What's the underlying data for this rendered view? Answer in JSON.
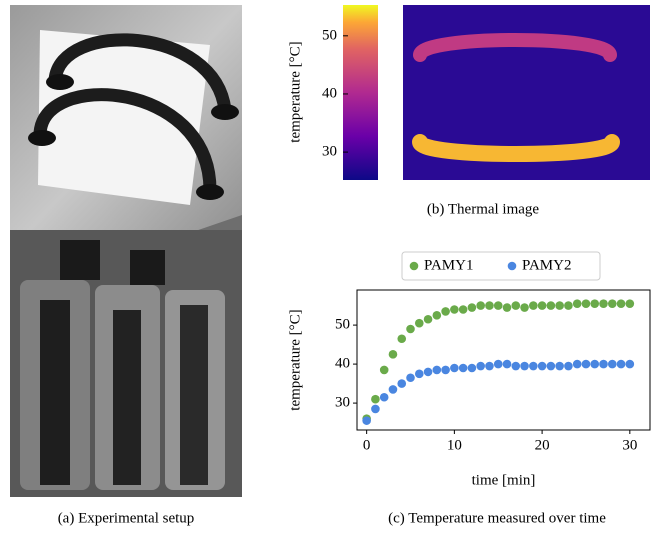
{
  "photo": {
    "caption": "(a) Experimental setup"
  },
  "chart_data": [
    {
      "type": "colorbar",
      "caption": "(b) Thermal image",
      "ylabel": "temperature [°C]",
      "ylim": [
        25.2,
        55.3
      ],
      "yticks": [
        30,
        40,
        50
      ]
    },
    {
      "type": "scatter",
      "caption": "(c) Temperature measured over time",
      "xlabel": "time [min]",
      "ylabel": "temperature [°C]",
      "xlim": [
        -1.1,
        32.3
      ],
      "xticks": [
        0,
        10,
        20,
        30
      ],
      "ylim": [
        23.1,
        59.0
      ],
      "yticks": [
        30,
        40,
        50
      ],
      "x": [
        0,
        1,
        2,
        3,
        4,
        5,
        6,
        7,
        8,
        9,
        10,
        11,
        12,
        13,
        14,
        15,
        16,
        17,
        18,
        19,
        20,
        21,
        22,
        23,
        24,
        25,
        26,
        27,
        28,
        29,
        30
      ],
      "series": [
        {
          "name": "PAMY1",
          "color": "#6aaa4a",
          "values": [
            26,
            31,
            38.5,
            42.5,
            46.5,
            49,
            50.5,
            51.5,
            52.5,
            53.5,
            54,
            54,
            54.5,
            55,
            55,
            55,
            54.5,
            55,
            54.5,
            55,
            55,
            55,
            55,
            55,
            55.5,
            55.5,
            55.5,
            55.5,
            55.5,
            55.5,
            55.5
          ]
        },
        {
          "name": "PAMY2",
          "color": "#4a86e0",
          "values": [
            25.5,
            28.5,
            31.5,
            33.5,
            35,
            36.5,
            37.5,
            38,
            38.5,
            38.5,
            39,
            39,
            39,
            39.5,
            39.5,
            40,
            40,
            39.5,
            39.5,
            39.5,
            39.5,
            39.5,
            39.5,
            39.5,
            40,
            40,
            40,
            40,
            40,
            40,
            40
          ]
        }
      ]
    }
  ]
}
